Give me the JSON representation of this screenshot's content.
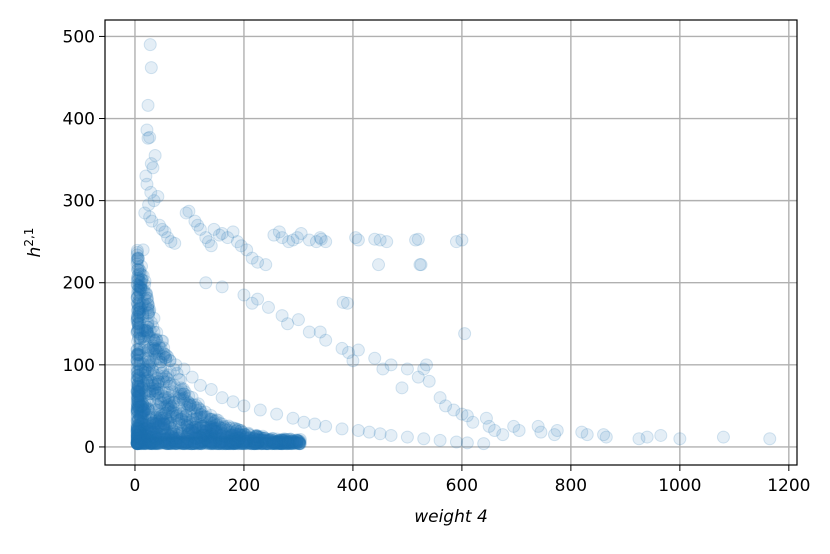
{
  "chart_data": {
    "type": "scatter",
    "title": "",
    "xlabel": "weight 4",
    "ylabel_base": "h",
    "ylabel_sup": "2,1",
    "xlim": [
      -55,
      1215
    ],
    "ylim": [
      -22,
      520
    ],
    "xticks": [
      0,
      200,
      400,
      600,
      800,
      1000,
      1200
    ],
    "yticks": [
      0,
      100,
      200,
      300,
      400,
      500
    ],
    "grid": true,
    "marker_color": "#1f77b4",
    "marker_alpha": 0.12,
    "series": [
      {
        "x": [
          28,
          30,
          24,
          22,
          27,
          24,
          37,
          30,
          33,
          20,
          22,
          29,
          42,
          35,
          25,
          18,
          27,
          31,
          45,
          50,
          55,
          60,
          66,
          73,
          94,
          99,
          110,
          115,
          120,
          130,
          135,
          140,
          145,
          155,
          160,
          170,
          180,
          188,
          195,
          205,
          215,
          225,
          240,
          255,
          265,
          270,
          282,
          290,
          298,
          305,
          320,
          333,
          340,
          342,
          350,
          382,
          390,
          405,
          410,
          440,
          447,
          450,
          462,
          515,
          520,
          523,
          525,
          590,
          600,
          605,
          130,
          160,
          200,
          215,
          225,
          245,
          270,
          280,
          300,
          320,
          350,
          340,
          380,
          392,
          400,
          410,
          440,
          455,
          470,
          490,
          500,
          520,
          530,
          535,
          540,
          560,
          570,
          585,
          600,
          610,
          620,
          645,
          650,
          660,
          675,
          695,
          705,
          740,
          745,
          770,
          775,
          820,
          830,
          860,
          865,
          925,
          940,
          965,
          1000,
          1080,
          1165,
          15,
          12,
          10,
          18,
          25,
          35,
          40,
          48,
          60,
          75,
          90,
          105,
          120,
          140,
          160,
          180,
          200,
          230,
          260,
          290,
          310,
          330,
          350,
          380,
          410,
          430,
          450,
          470,
          500,
          530,
          560,
          590,
          610,
          640
        ],
        "y": [
          490,
          462,
          416,
          386,
          377,
          376,
          355,
          345,
          340,
          330,
          320,
          310,
          305,
          300,
          295,
          285,
          280,
          275,
          270,
          265,
          262,
          255,
          250,
          248,
          285,
          287,
          275,
          270,
          265,
          255,
          250,
          245,
          265,
          258,
          260,
          255,
          262,
          250,
          245,
          240,
          230,
          225,
          222,
          258,
          262,
          255,
          250,
          252,
          255,
          260,
          252,
          250,
          255,
          253,
          250,
          176,
          175,
          255,
          252,
          253,
          222,
          252,
          250,
          252,
          253,
          222,
          222,
          250,
          252,
          138,
          200,
          195,
          185,
          175,
          180,
          170,
          160,
          150,
          155,
          140,
          130,
          140,
          120,
          115,
          105,
          118,
          108,
          95,
          100,
          72,
          95,
          85,
          95,
          100,
          80,
          60,
          50,
          45,
          40,
          38,
          30,
          35,
          25,
          20,
          15,
          25,
          20,
          25,
          18,
          15,
          20,
          18,
          15,
          15,
          12,
          10,
          12,
          14,
          10,
          12,
          10,
          240,
          220,
          200,
          180,
          160,
          140,
          130,
          120,
          110,
          100,
          95,
          85,
          75,
          70,
          60,
          55,
          50,
          45,
          40,
          35,
          30,
          28,
          25,
          22,
          20,
          18,
          16,
          14,
          12,
          10,
          8,
          6,
          5,
          4
        ]
      }
    ]
  }
}
